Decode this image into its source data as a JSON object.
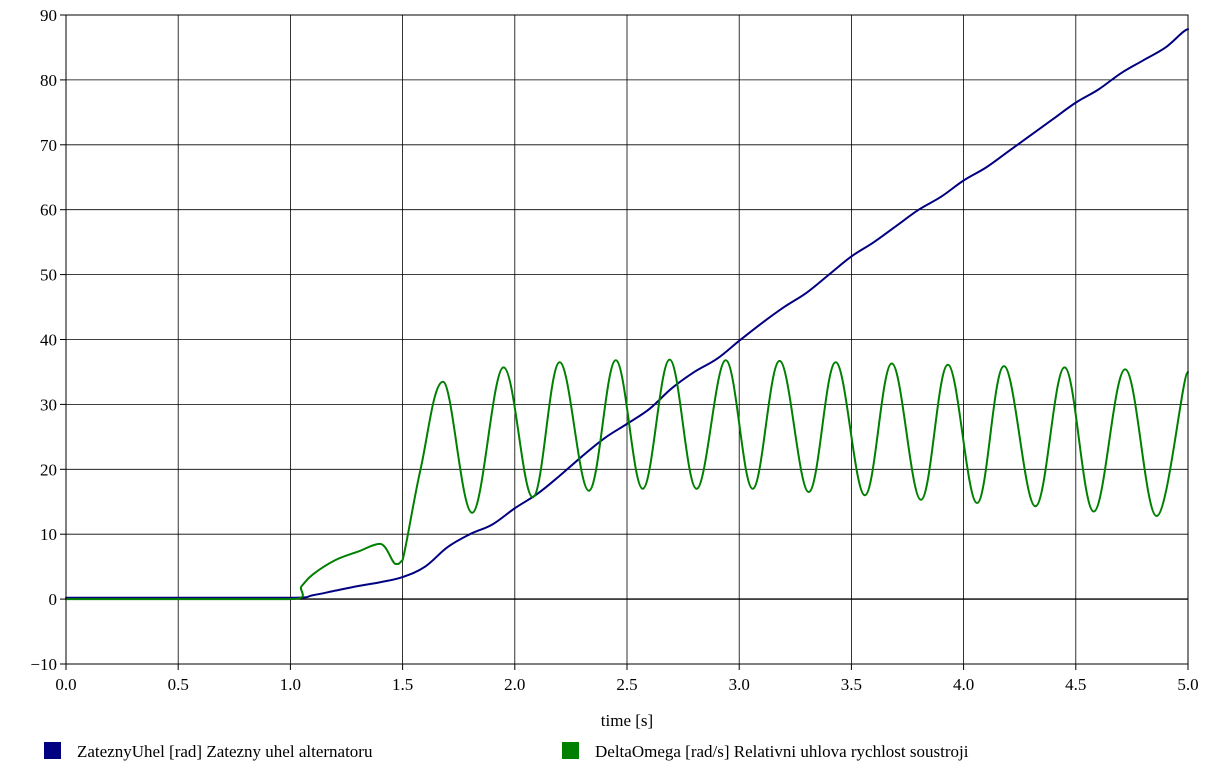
{
  "chart_data": {
    "type": "line",
    "title": "",
    "xlabel": "time [s]",
    "ylabel": "",
    "xlim": [
      0,
      5
    ],
    "ylim": [
      -10,
      90
    ],
    "grid": true,
    "legend_position": "bottom",
    "x_ticks": [
      "0.0",
      "0.5",
      "1.0",
      "1.5",
      "2.0",
      "2.5",
      "3.0",
      "3.5",
      "4.0",
      "4.5",
      "5.0"
    ],
    "y_ticks": [
      "−10",
      "0",
      "10",
      "20",
      "30",
      "40",
      "50",
      "60",
      "70",
      "80",
      "90"
    ],
    "series": [
      {
        "name": "ZateznyUhel [rad] Zatezny uhel alternatoru",
        "color": "#000080",
        "x": [
          0,
          0.5,
          1.0,
          1.1,
          1.2,
          1.3,
          1.4,
          1.5,
          1.6,
          1.7,
          1.8,
          1.9,
          2.0,
          2.1,
          2.2,
          2.3,
          2.4,
          2.5,
          2.6,
          2.7,
          2.8,
          2.9,
          3.0,
          3.1,
          3.2,
          3.3,
          3.4,
          3.5,
          3.6,
          3.7,
          3.8,
          3.9,
          4.0,
          4.1,
          4.2,
          4.3,
          4.4,
          4.5,
          4.6,
          4.7,
          4.8,
          4.9,
          5.0
        ],
        "values": [
          0.2,
          0.2,
          0.2,
          0.6,
          1.3,
          2.0,
          2.6,
          3.4,
          5.0,
          8.0,
          10.0,
          11.5,
          14.0,
          16.2,
          19.0,
          22.0,
          24.8,
          27.0,
          29.3,
          32.5,
          35.0,
          37.0,
          39.8,
          42.5,
          45.0,
          47.2,
          50.0,
          52.8,
          55.0,
          57.5,
          60.0,
          62.0,
          64.5,
          66.5,
          69.0,
          71.5,
          74.0,
          76.5,
          78.5,
          81.0,
          83.0,
          85.0,
          87.8
        ]
      },
      {
        "name": "DeltaOmega [rad/s] Relativni uhlova rychlost soustroji",
        "color": "#008000",
        "x": [
          0,
          0.5,
          1.0,
          1.05,
          1.1,
          1.2,
          1.3,
          1.4,
          1.47,
          1.5,
          1.58,
          1.68,
          1.81,
          1.95,
          2.08,
          2.2,
          2.33,
          2.45,
          2.57,
          2.69,
          2.81,
          2.94,
          3.06,
          3.18,
          3.31,
          3.43,
          3.56,
          3.68,
          3.81,
          3.93,
          4.06,
          4.18,
          4.32,
          4.45,
          4.58,
          4.72,
          4.86,
          5.0
        ],
        "values": [
          0,
          0,
          0,
          2.0,
          3.8,
          6.0,
          7.3,
          8.5,
          5.4,
          6.0,
          20.0,
          33.5,
          13.3,
          35.7,
          15.7,
          36.5,
          16.7,
          36.8,
          17.0,
          36.9,
          17.0,
          36.8,
          17.0,
          36.7,
          16.5,
          36.5,
          16.0,
          36.3,
          15.3,
          36.1,
          14.8,
          35.9,
          14.3,
          35.7,
          13.5,
          35.4,
          12.8,
          35.0
        ]
      }
    ]
  }
}
